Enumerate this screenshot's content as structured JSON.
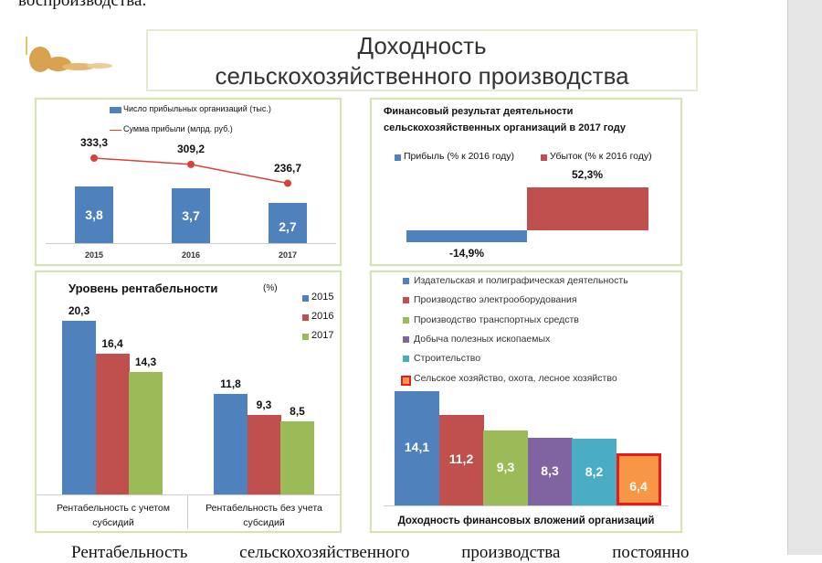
{
  "document": {
    "text_top": "воспроизводства.",
    "text_bottom": "Рентабельность сельскохозяйственного производства постоянно"
  },
  "slide_title": {
    "line1": "Доходность",
    "line2": "сельскохозяйственного производства"
  },
  "colors": {
    "blue": "#4f81bd",
    "red": "#c0504d",
    "green": "#9bbb59",
    "purple": "#8064a2",
    "teal": "#4bacc6",
    "orange": "#f79646",
    "line": "#d9413a",
    "border": "#d4e3b8"
  },
  "chart_data": [
    {
      "type": "bar+line",
      "categories": [
        "2015",
        "2016",
        "2017"
      ],
      "series": [
        {
          "name": "Число прибыльных организаций (тыс.)",
          "type": "bar",
          "values": [
            3.8,
            3.7,
            2.7
          ],
          "labels": [
            "3,8",
            "3,7",
            "2,7"
          ]
        },
        {
          "name": "Сумма прибыли (млрд. руб.)",
          "type": "line",
          "values": [
            333.3,
            309.2,
            236.7
          ],
          "labels": [
            "333,3",
            "309,2",
            "236,7"
          ]
        }
      ]
    },
    {
      "type": "bar",
      "title": "Финансовый результат деятельности сельскохозяйственных организаций в 2017 году",
      "series": [
        {
          "name": "Прибыль (% к 2016 году)",
          "values": [
            -14.9
          ],
          "labels": [
            "-14,9%"
          ]
        },
        {
          "name": "Убыток (% к 2016 году)",
          "values": [
            52.3
          ],
          "labels": [
            "52,3%"
          ]
        }
      ]
    },
    {
      "type": "bar",
      "title": "Уровень рентабельности",
      "title_unit": "(%)",
      "categories": [
        "Рентабельность с учетом субсидий",
        "Рентабельность без учета субсидий"
      ],
      "series": [
        {
          "name": "2015",
          "values": [
            20.3,
            11.8
          ],
          "labels": [
            "20,3",
            "11,8"
          ]
        },
        {
          "name": "2016",
          "values": [
            16.4,
            9.3
          ],
          "labels": [
            "16,4",
            "9,3"
          ]
        },
        {
          "name": "2017",
          "values": [
            14.3,
            8.5
          ],
          "labels": [
            "14,3",
            "8,5"
          ]
        }
      ]
    },
    {
      "type": "bar",
      "title": "Доходность финансовых вложений организаций",
      "series": [
        {
          "name": "Издательская и полиграфическая деятельность",
          "value": 14.1,
          "label": "14,1"
        },
        {
          "name": "Производство электрооборудования",
          "value": 11.2,
          "label": "11,2"
        },
        {
          "name": "Производство транспортных средств",
          "value": 9.3,
          "label": "9,3"
        },
        {
          "name": "Добыча полезных ископаемых",
          "value": 8.3,
          "label": "8,3"
        },
        {
          "name": "Строительство",
          "value": 8.2,
          "label": "8,2"
        },
        {
          "name": "Сельское хозяйство, охота, лесное хозяйство",
          "value": 6.4,
          "label": "6,4",
          "highlighted": true
        }
      ]
    }
  ]
}
